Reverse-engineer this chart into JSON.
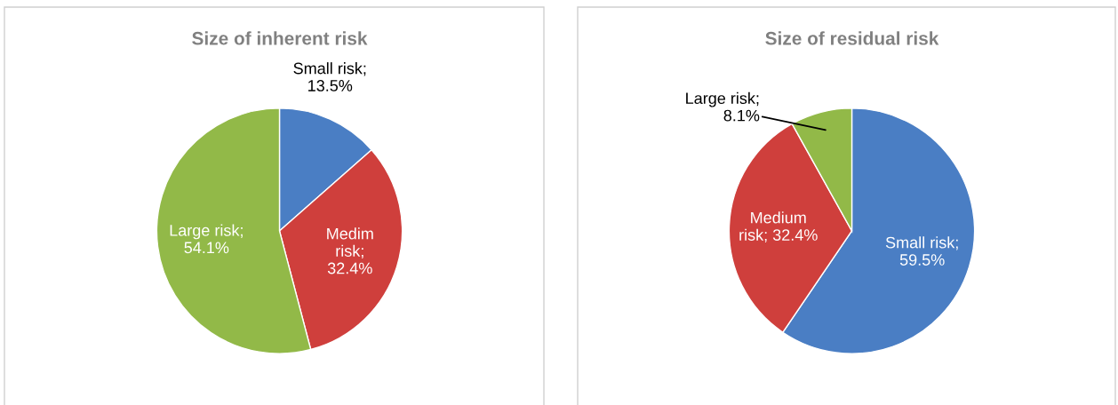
{
  "chart_data": [
    {
      "type": "pie",
      "title": "Size of inherent risk",
      "categories": [
        "Small risk",
        "Medim risk",
        "Large risk"
      ],
      "values": [
        13.5,
        32.4,
        54.1
      ],
      "colors": [
        "#4a7ec4",
        "#cf3f3c",
        "#92b948"
      ],
      "value_labels": [
        ";\n13.5%",
        ";\n32.4%",
        ";\n54.1%"
      ],
      "legend": false
    },
    {
      "type": "pie",
      "title": "Size of residual risk",
      "categories": [
        "Small risk",
        "Medium risk",
        "Large risk"
      ],
      "values": [
        59.5,
        32.4,
        8.1
      ],
      "colors": [
        "#4a7ec4",
        "#cf3f3c",
        "#92b948"
      ],
      "value_labels": [
        ";\n59.5%",
        "; 32.4%",
        ";\n8.1%"
      ],
      "legend": false
    }
  ]
}
